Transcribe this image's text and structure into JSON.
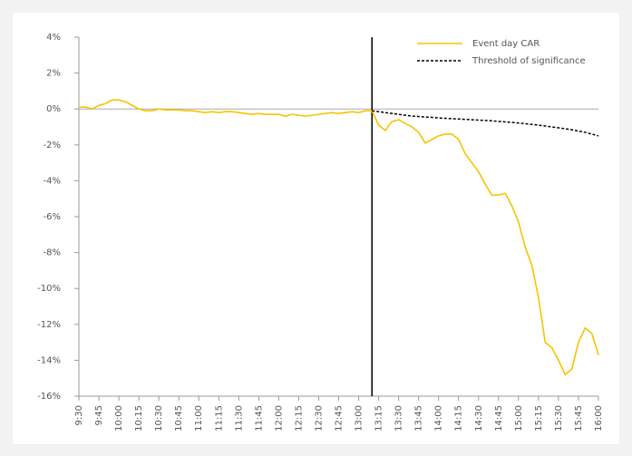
{
  "chart_data": {
    "type": "line",
    "categories": [
      "9:30",
      null,
      null,
      "9:45",
      null,
      null,
      "10:00",
      null,
      null,
      "10:15",
      null,
      null,
      "10:30",
      null,
      null,
      "10:45",
      null,
      null,
      "11:00",
      null,
      null,
      "11:15",
      null,
      null,
      "11:30",
      null,
      null,
      "11:45",
      null,
      null,
      "12:00",
      null,
      null,
      "12:15",
      null,
      null,
      "12:30",
      null,
      null,
      "12:45",
      null,
      null,
      "13:00",
      null,
      null,
      "13:15",
      null,
      null,
      "13:30",
      null,
      null,
      "13:45",
      null,
      null,
      "14:00",
      null,
      null,
      "14:15",
      null,
      null,
      "14:30",
      null,
      null,
      "14:45",
      null,
      null,
      "15:00",
      null,
      null,
      "15:15",
      null,
      null,
      "15:30",
      null,
      null,
      "15:45",
      null,
      null,
      "16:00"
    ],
    "series": [
      {
        "name": "Event day CAR",
        "color": "#f5c400",
        "values": [
          0.1,
          0.1,
          0.0,
          0.2,
          0.3,
          0.5,
          0.5,
          0.4,
          0.2,
          0.0,
          -0.1,
          -0.1,
          0.0,
          -0.05,
          -0.05,
          -0.05,
          -0.1,
          -0.1,
          -0.15,
          -0.2,
          -0.15,
          -0.2,
          -0.15,
          -0.15,
          -0.2,
          -0.25,
          -0.3,
          -0.25,
          -0.3,
          -0.3,
          -0.3,
          -0.4,
          -0.3,
          -0.35,
          -0.4,
          -0.35,
          -0.3,
          -0.25,
          -0.2,
          -0.25,
          -0.2,
          -0.15,
          -0.2,
          -0.1,
          -0.1,
          -0.9,
          -1.2,
          -0.7,
          -0.6,
          -0.8,
          -1.0,
          -1.3,
          -1.9,
          -1.7,
          -1.5,
          -1.4,
          -1.4,
          -1.7,
          -2.5,
          -3.0,
          -3.5,
          -4.2,
          -4.8,
          -4.8,
          -4.7,
          -5.4,
          -6.3,
          -7.7,
          -8.7,
          -10.5,
          -13.0,
          -13.3,
          -14.0,
          -14.8,
          -14.5,
          -13.0,
          -12.2,
          -12.5,
          -13.7
        ]
      },
      {
        "name": "Threshold of significance",
        "color": "#000000",
        "dashed": true,
        "values": [
          null,
          null,
          null,
          null,
          null,
          null,
          null,
          null,
          null,
          null,
          null,
          null,
          null,
          null,
          null,
          null,
          null,
          null,
          null,
          null,
          null,
          null,
          null,
          null,
          null,
          null,
          null,
          null,
          null,
          null,
          null,
          null,
          null,
          null,
          null,
          null,
          null,
          null,
          null,
          null,
          null,
          null,
          null,
          null,
          -0.1,
          -0.15,
          -0.2,
          -0.25,
          -0.3,
          -0.35,
          -0.4,
          -0.42,
          -0.45,
          -0.47,
          -0.5,
          -0.52,
          -0.54,
          -0.56,
          -0.58,
          -0.6,
          -0.62,
          -0.64,
          -0.66,
          -0.69,
          -0.72,
          -0.75,
          -0.78,
          -0.82,
          -0.86,
          -0.9,
          -0.95,
          -1.0,
          -1.05,
          -1.1,
          -1.16,
          -1.23,
          -1.3,
          -1.4,
          -1.5
        ]
      }
    ],
    "ylim": [
      -16,
      4
    ],
    "yticks": [
      {
        "value": 4,
        "label": "4%"
      },
      {
        "value": 2,
        "label": "2%"
      },
      {
        "value": 0,
        "label": "0%"
      },
      {
        "value": -2,
        "label": "-2%"
      },
      {
        "value": -4,
        "label": "-4%"
      },
      {
        "value": -6,
        "label": "-6%"
      },
      {
        "value": -8,
        "label": "-8%"
      },
      {
        "value": -10,
        "label": "-10%"
      },
      {
        "value": -12,
        "label": "-12%"
      },
      {
        "value": -14,
        "label": "-14%"
      },
      {
        "value": -16,
        "label": "-16%"
      }
    ],
    "legend": "top-right"
  }
}
